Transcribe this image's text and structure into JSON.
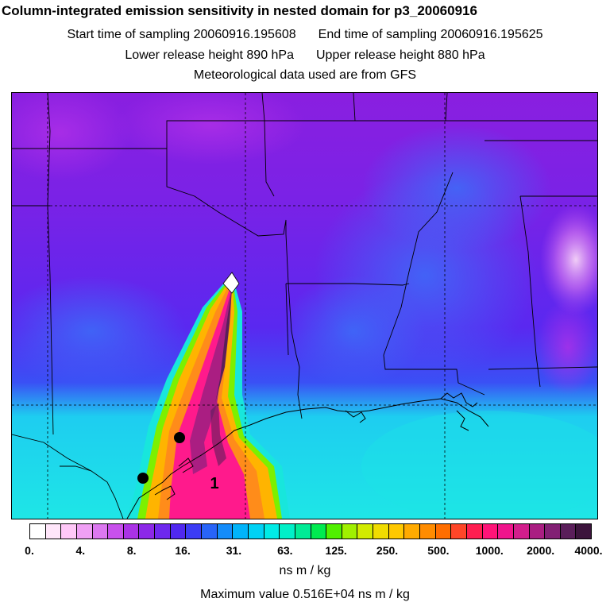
{
  "title": "Column-integrated emission sensitivity in nested domain for p3_20060916",
  "sampling": {
    "start": "Start time of sampling 20060916.195608",
    "end": "End time of sampling 20060916.195625"
  },
  "release": {
    "lower": "Lower release height  890 hPa",
    "upper": "Upper release height  880 hPa"
  },
  "met_source": "Meteorological data used are from GFS",
  "map": {
    "marker_label": "1",
    "colors": {
      "background_top": "#8a1fe0",
      "background_mid": "#5a28f0",
      "gulf_cyan": "#1ee6e6",
      "plume_core": "#ff1a8c",
      "plume_edge": "#ffb400",
      "plume_green": "#7cf000",
      "borders": "#000000"
    }
  },
  "colorbar": {
    "colors": [
      "#ffffff",
      "#ffe6fa",
      "#ffc8f8",
      "#f0a0f5",
      "#dc78f0",
      "#c850ec",
      "#aa32e6",
      "#8c28e8",
      "#6e28ee",
      "#5028f0",
      "#3c3cf5",
      "#2864f8",
      "#148cfa",
      "#00b4fa",
      "#00d2f5",
      "#00ebe6",
      "#00f0c8",
      "#00eb96",
      "#00eb50",
      "#50f000",
      "#a0f000",
      "#d2eb00",
      "#f0dc00",
      "#ffc800",
      "#ffaa00",
      "#ff8c00",
      "#ff6e00",
      "#ff4628",
      "#ff1e50",
      "#ff1478",
      "#f0148c",
      "#d21e8c",
      "#aa1e82",
      "#822074",
      "#5a1e5a",
      "#3c143c"
    ],
    "ticks": [
      "0.",
      "4.",
      "8.",
      "16.",
      "31.",
      "63.",
      "125.",
      "250.",
      "500.",
      "1000.",
      "2000.",
      "4000."
    ]
  },
  "units": "ns m / kg",
  "max_value": "Maximum value  0.516E+04 ns m / kg"
}
